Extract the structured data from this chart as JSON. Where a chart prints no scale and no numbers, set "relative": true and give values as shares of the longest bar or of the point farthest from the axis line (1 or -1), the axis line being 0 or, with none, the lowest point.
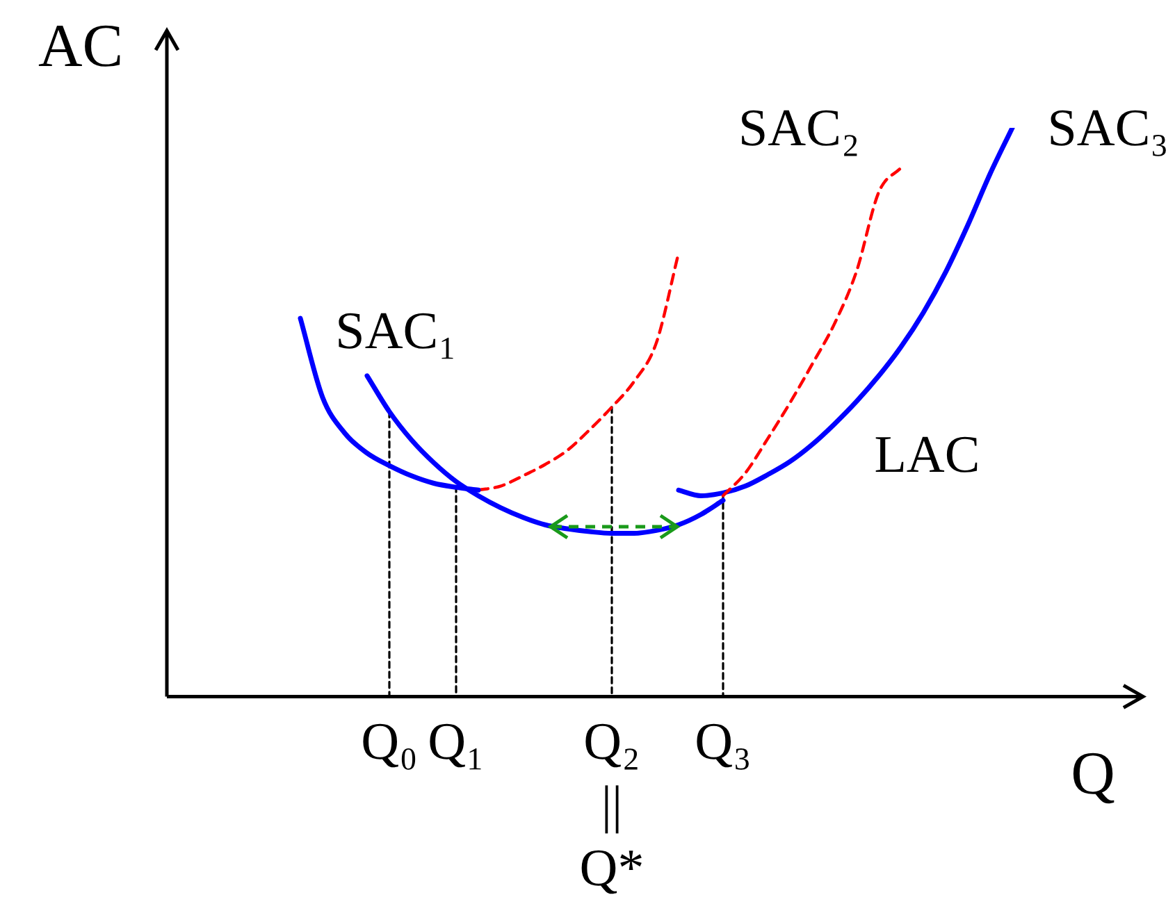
{
  "chart_data": {
    "type": "line",
    "relative": true,
    "xlabel": "Q",
    "ylabel": "AC",
    "grid": false,
    "legend": false,
    "marker": "none",
    "categories": [
      null,
      null,
      null,
      null,
      null,
      null,
      null,
      null,
      null,
      null,
      "Q₀",
      null,
      null,
      "Q₁",
      null,
      null,
      null,
      null,
      null,
      null,
      "Q₂\n||\nQ*",
      null,
      null,
      null,
      null,
      "Q₃",
      null,
      null,
      null,
      null,
      null,
      null,
      null,
      null,
      null,
      null,
      null,
      null,
      null,
      null,
      null,
      null,
      null,
      null
    ],
    "annotations": [
      "SAC₁",
      "SAC₂",
      "SAC₃",
      "LAC"
    ],
    "series": [
      {
        "color": "#0000ff",
        "line_style": "solid",
        "values": [
          null,
          null,
          null,
          null,
          null,
          null,
          0.665,
          0.526,
          0.463,
          0.428,
          0.406,
          0.388,
          0.375,
          0.368,
          0.363,
          null,
          null,
          null,
          null,
          null,
          null,
          null,
          null,
          null,
          null,
          null,
          null,
          null,
          null,
          null,
          null,
          null,
          null,
          null,
          null,
          null,
          null,
          null,
          null,
          null,
          null,
          null,
          null,
          null
        ]
      },
      {
        "color": "#ff0000",
        "line_style": "dashed",
        "values": [
          null,
          null,
          null,
          null,
          null,
          null,
          null,
          null,
          null,
          null,
          null,
          null,
          null,
          null,
          0.363,
          0.37,
          0.388,
          0.408,
          0.433,
          0.469,
          0.509,
          0.554,
          0.622,
          0.78,
          null,
          null,
          null,
          null,
          null,
          null,
          null,
          null,
          null,
          null,
          null,
          null,
          null,
          null,
          null,
          null,
          null,
          null,
          null,
          null
        ]
      },
      {
        "color": "#0000ff",
        "line_style": "solid",
        "values": [
          null,
          null,
          null,
          null,
          null,
          null,
          null,
          null,
          null,
          0.564,
          0.501,
          0.451,
          0.411,
          0.378,
          0.353,
          0.332,
          0.315,
          0.302,
          0.295,
          0.29,
          0.287,
          0.287,
          0.292,
          0.302,
          0.32,
          0.345,
          null,
          null,
          null,
          null,
          null,
          null,
          null,
          null,
          null,
          null,
          null,
          null,
          null,
          null,
          null,
          null,
          null,
          null
        ]
      },
      {
        "color": "#ff0000",
        "line_style": "dashed",
        "values": [
          null,
          null,
          null,
          null,
          null,
          null,
          null,
          null,
          null,
          null,
          null,
          null,
          null,
          null,
          null,
          null,
          null,
          null,
          null,
          null,
          null,
          null,
          null,
          null,
          null,
          0.353,
          0.393,
          0.453,
          0.516,
          0.584,
          0.655,
          0.748,
          0.887,
          0.93,
          null,
          null,
          null,
          null,
          null,
          null,
          null,
          null,
          null,
          null
        ]
      },
      {
        "color": "#0000ff",
        "line_style": "solid",
        "values": [
          null,
          null,
          null,
          null,
          null,
          null,
          null,
          null,
          null,
          null,
          null,
          null,
          null,
          null,
          null,
          null,
          null,
          null,
          null,
          null,
          null,
          null,
          null,
          0.363,
          0.353,
          0.358,
          0.37,
          0.39,
          0.413,
          0.443,
          0.479,
          0.519,
          0.564,
          0.615,
          0.675,
          0.746,
          0.829,
          0.919,
          1,
          null,
          null,
          null,
          null,
          null
        ]
      },
      {
        "color": "#000000",
        "line_style": "dashed",
        "x": [
          "Q₀",
          "Q₀"
        ],
        "values": [
          0,
          0.501
        ]
      },
      {
        "color": "#000000",
        "line_style": "dashed",
        "x": [
          "Q₁",
          "Q₁"
        ],
        "values": [
          0,
          0.37
        ]
      },
      {
        "color": "#000000",
        "line_style": "dashed",
        "x": [
          "Q₂\n||\nQ*",
          "Q₂\n||\nQ*"
        ],
        "values": [
          0,
          0.509
        ]
      },
      {
        "color": "#000000",
        "line_style": "dashed",
        "x": [
          "Q₃",
          "Q₃"
        ],
        "values": [
          0,
          0.358
        ]
      }
    ]
  }
}
